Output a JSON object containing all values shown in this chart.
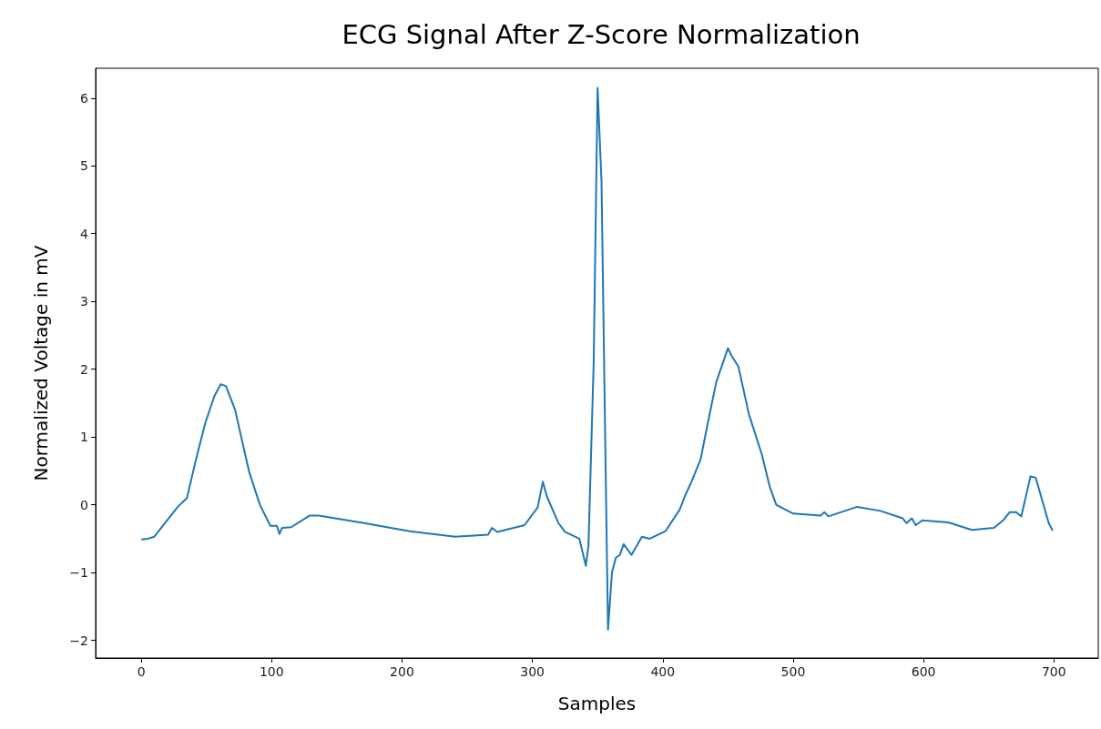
{
  "chart_data": {
    "type": "line",
    "title": "ECG Signal After Z-Score Normalization",
    "xlabel": "Samples",
    "ylabel": "Normalized Voltage in mV",
    "xlim": [
      -35,
      734
    ],
    "ylim": [
      -2.26,
      6.44
    ],
    "xticks": [
      0,
      100,
      200,
      300,
      400,
      500,
      600,
      700
    ],
    "yticks": [
      -2,
      -1,
      0,
      1,
      2,
      3,
      4,
      5,
      6
    ],
    "grid": false,
    "marker": "none",
    "line_style": "solid",
    "series": [
      {
        "color": "#1f77b4",
        "x": [
          0,
          5,
          10,
          21,
          28,
          35,
          42,
          49,
          56,
          61,
          65,
          72,
          79,
          83,
          91,
          99,
          104,
          106,
          108,
          115,
          129,
          136,
          171,
          206,
          241,
          266,
          269,
          273,
          294,
          304,
          308,
          311,
          320,
          325,
          336,
          341,
          343,
          347,
          350,
          353,
          356,
          358,
          361,
          364,
          367,
          370,
          376,
          384,
          390,
          402,
          413,
          417,
          422,
          429,
          435,
          441,
          450,
          453,
          458,
          466,
          476,
          482,
          487,
          500,
          521,
          524,
          527,
          549,
          567,
          584,
          587,
          591,
          594,
          599,
          619,
          637,
          654,
          661,
          666,
          671,
          675,
          682,
          686,
          689,
          696,
          699
        ],
        "values": [
          -0.51,
          -0.5,
          -0.47,
          -0.2,
          -0.03,
          0.1,
          0.67,
          1.2,
          1.6,
          1.78,
          1.75,
          1.4,
          0.8,
          0.47,
          0,
          -0.31,
          -0.31,
          -0.43,
          -0.34,
          -0.33,
          -0.16,
          -0.16,
          -0.27,
          -0.39,
          -0.47,
          -0.44,
          -0.34,
          -0.4,
          -0.3,
          -0.04,
          0.34,
          0.13,
          -0.27,
          -0.4,
          -0.5,
          -0.9,
          -0.6,
          2.1,
          6.15,
          4.77,
          0.74,
          -1.84,
          -1,
          -0.78,
          -0.74,
          -0.58,
          -0.74,
          -0.47,
          -0.5,
          -0.39,
          -0.07,
          0.13,
          0.34,
          0.67,
          1.25,
          1.81,
          2.31,
          2.19,
          2.04,
          1.34,
          0.74,
          0.27,
          0,
          -0.13,
          -0.16,
          -0.11,
          -0.17,
          -0.03,
          -0.09,
          -0.2,
          -0.27,
          -0.2,
          -0.3,
          -0.23,
          -0.26,
          -0.37,
          -0.34,
          -0.23,
          -0.11,
          -0.11,
          -0.17,
          0.42,
          0.4,
          0.2,
          -0.27,
          -0.38
        ]
      }
    ]
  }
}
